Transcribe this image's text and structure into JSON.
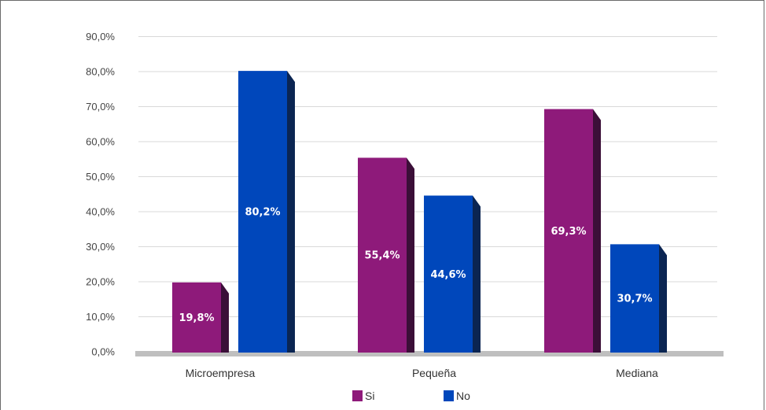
{
  "chart_data": {
    "type": "bar",
    "categories": [
      "Microempresa",
      "Pequeña",
      "Mediana"
    ],
    "series": [
      {
        "name": "Si",
        "values": [
          19.8,
          55.4,
          69.3
        ],
        "labels": [
          "19,8%",
          "55,4%",
          "69,3%"
        ],
        "color": "#8e1a7a",
        "side_color": "#3b0f38"
      },
      {
        "name": "No",
        "values": [
          80.2,
          44.6,
          30.7
        ],
        "labels": [
          "80,2%",
          "44,6%",
          "30,7%"
        ],
        "color": "#0047bb",
        "side_color": "#0b2552"
      }
    ],
    "y_ticks": [
      "0,0%",
      "10,0%",
      "20,0%",
      "30,0%",
      "40,0%",
      "50,0%",
      "60,0%",
      "70,0%",
      "80,0%",
      "90,0%"
    ],
    "ylim": [
      0,
      90
    ],
    "grid": true,
    "legend_position": "bottom",
    "floor_color": "#bfbfbf",
    "grid_color": "#d9d9d9"
  }
}
